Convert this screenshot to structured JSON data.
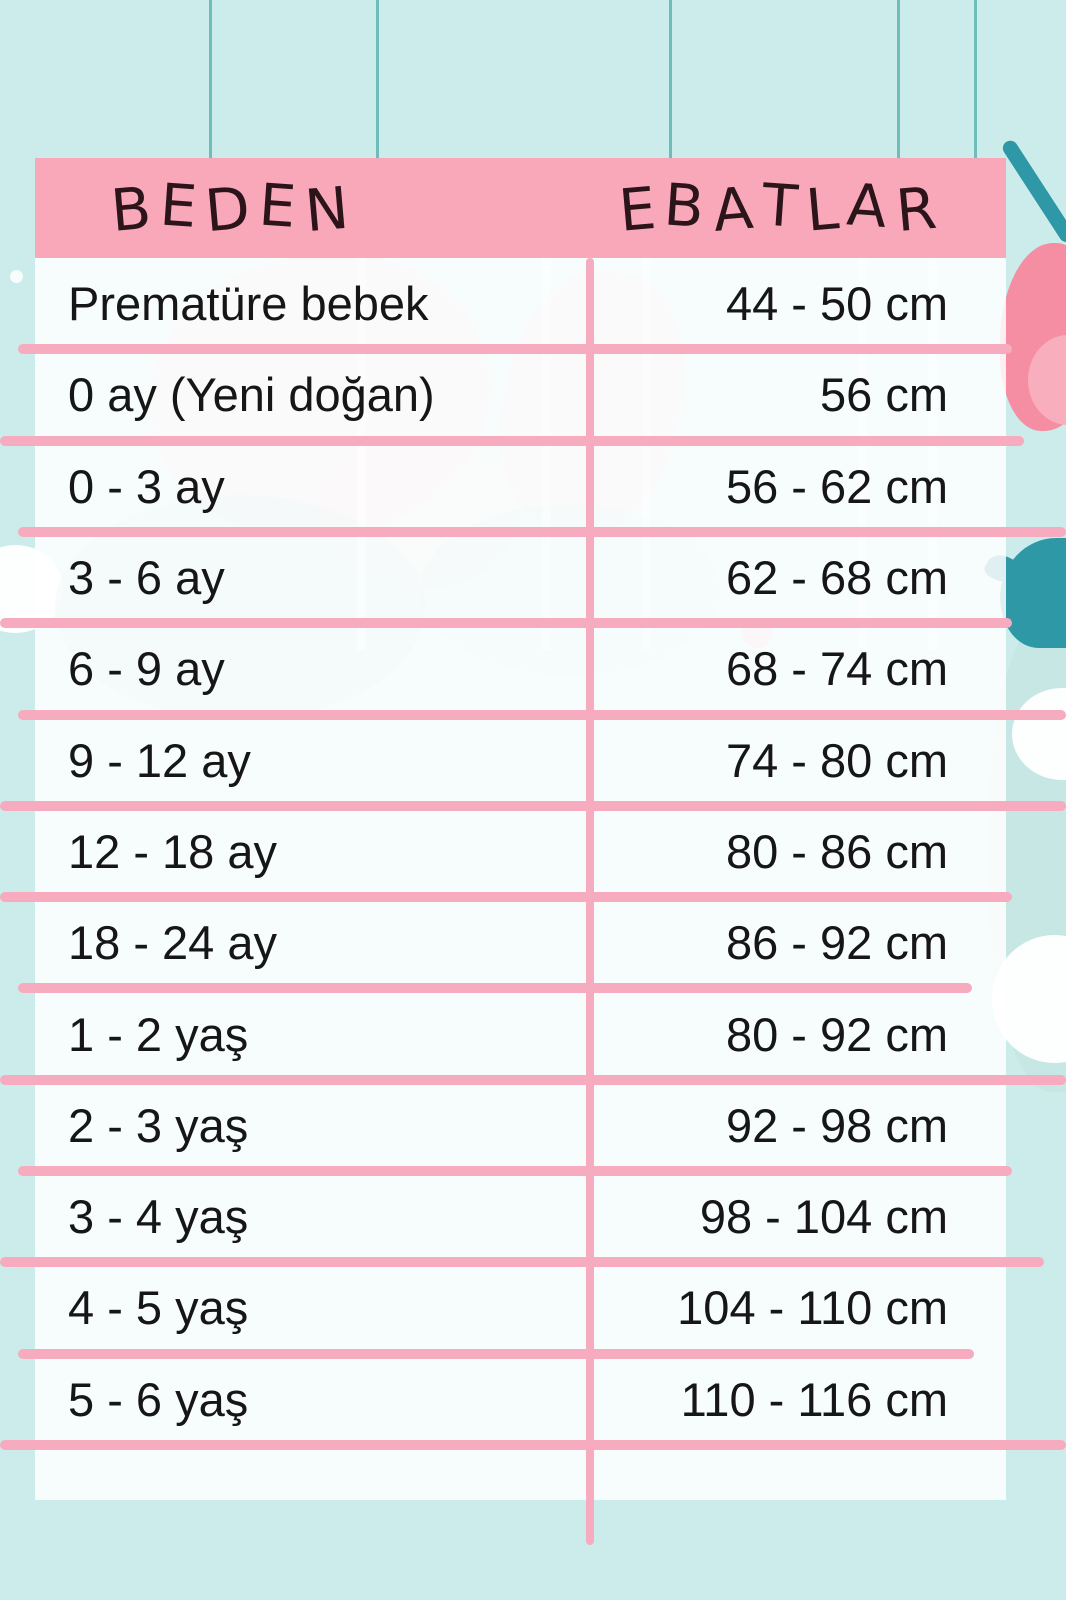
{
  "table": {
    "header": {
      "beden": "BEDEN",
      "ebatlar": "EBATLAR"
    },
    "rows": [
      {
        "beden": "Prematüre bebek",
        "ebatlar": "44 - 50 cm"
      },
      {
        "beden": "0 ay (Yeni doğan)",
        "ebatlar": "56 cm"
      },
      {
        "beden": "0 - 3 ay",
        "ebatlar": "56 - 62 cm"
      },
      {
        "beden": "3 - 6 ay",
        "ebatlar": "62 - 68 cm"
      },
      {
        "beden": "6 - 9 ay",
        "ebatlar": "68 - 74 cm"
      },
      {
        "beden": "9 - 12 ay",
        "ebatlar": "74 - 80 cm"
      },
      {
        "beden": "12 - 18 ay",
        "ebatlar": "80 - 86 cm"
      },
      {
        "beden": "18 - 24 ay",
        "ebatlar": "86 - 92 cm"
      },
      {
        "beden": "1 - 2 yaş",
        "ebatlar": "80 - 92 cm"
      },
      {
        "beden": "2 - 3 yaş",
        "ebatlar": "92 - 98 cm"
      },
      {
        "beden": "3 - 4 yaş",
        "ebatlar": "98 - 104 cm"
      },
      {
        "beden": "4 - 5 yaş",
        "ebatlar": "104 - 110 cm"
      },
      {
        "beden": "5 - 6 yaş",
        "ebatlar": "110 - 116 cm"
      }
    ]
  },
  "colors": {
    "background": "#cbecea",
    "header_pink": "#f9a8b9",
    "line_pink": "#f6abbe",
    "header_text": "#2b151b",
    "text_dark": "#161616",
    "accent_teal": "#2e98a6",
    "accent_pink": "#f58da3",
    "string_teal": "#6fbcbd"
  },
  "decorations": {
    "icons": [
      "string-icon",
      "ribbon-icon",
      "bib-icon",
      "whale-icon",
      "cloud-icon",
      "heart-icon",
      "dot-icon"
    ]
  }
}
